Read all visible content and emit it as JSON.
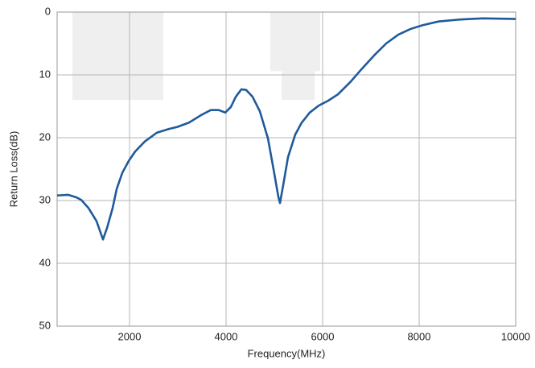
{
  "chart_data": {
    "type": "line",
    "x_label": "Frequency(MHz)",
    "y_label": "Return Loss(dB)",
    "xlim": [
      500,
      10000
    ],
    "xticks": [
      2000,
      4000,
      6000,
      8000,
      10000
    ],
    "ylim": [
      50,
      0
    ],
    "yticks": [
      0,
      10,
      20,
      30,
      40,
      50
    ],
    "grid": true,
    "bands": [
      {
        "x": [
          817,
          2700
        ],
        "y": [
          0,
          14
        ]
      },
      {
        "x": [
          4917,
          5950
        ],
        "y": [
          0,
          9.4
        ]
      },
      {
        "x": [
          5150,
          5833
        ],
        "y": [
          9.4,
          14
        ]
      }
    ],
    "band_color": "#efefef",
    "x": [
      500,
      733,
      900,
      1000,
      1150,
      1317,
      1450,
      1533,
      1650,
      1733,
      1850,
      1983,
      2117,
      2317,
      2567,
      2817,
      2983,
      3233,
      3483,
      3683,
      3850,
      3983,
      4100,
      4200,
      4317,
      4417,
      4550,
      4700,
      4867,
      4983,
      5083,
      5117,
      5183,
      5283,
      5433,
      5567,
      5733,
      5917,
      6117,
      6317,
      6567,
      6817,
      7067,
      7317,
      7567,
      7817,
      8067,
      8400,
      8817,
      9317,
      10000
    ],
    "series": [
      {
        "color": "#1f5a9a",
        "values": [
          29.2,
          29.1,
          29.5,
          29.9,
          31.2,
          33.3,
          36.2,
          34.4,
          31.2,
          28.2,
          25.6,
          23.7,
          22.2,
          20.6,
          19.2,
          18.6,
          18.3,
          17.6,
          16.4,
          15.6,
          15.6,
          16.0,
          15.1,
          13.5,
          12.3,
          12.4,
          13.5,
          15.8,
          20.1,
          25.0,
          29.4,
          30.4,
          27.6,
          23.1,
          19.5,
          17.6,
          16.0,
          14.9,
          14.1,
          13.1,
          11.2,
          9.0,
          6.9,
          5.0,
          3.6,
          2.7,
          2.1,
          1.5,
          1.2,
          1.0,
          1.1
        ]
      }
    ]
  }
}
